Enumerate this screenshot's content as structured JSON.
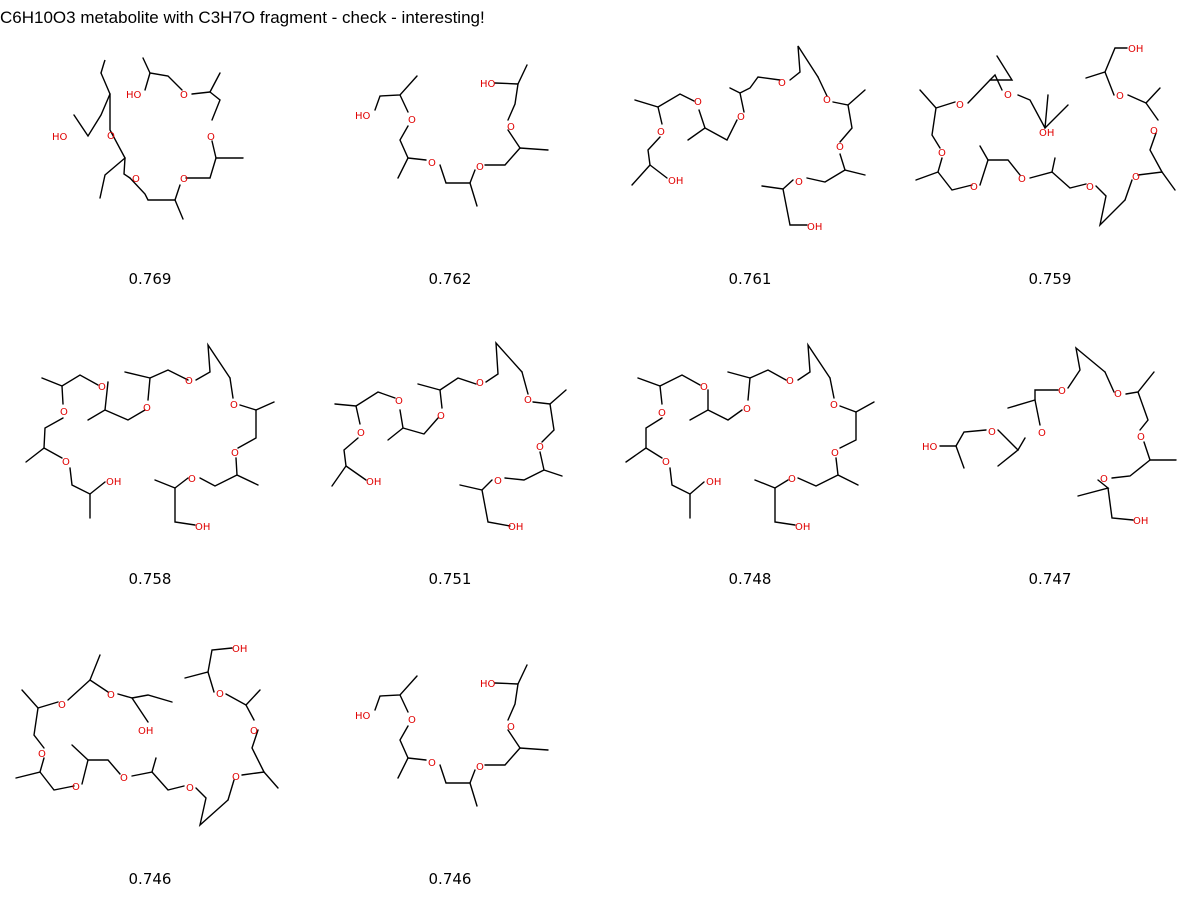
{
  "title": "C6H10O3 metabolite with C3H7O fragment - check - interesting!",
  "colors": {
    "bond": "#000000",
    "oxygen": "#e00000",
    "background": "#ffffff"
  },
  "molecules": [
    {
      "score": "0.769",
      "atom_labels": [
        "HO",
        "HO"
      ]
    },
    {
      "score": "0.762",
      "atom_labels": [
        "HO",
        "HO"
      ]
    },
    {
      "score": "0.761",
      "atom_labels": [
        "OH",
        "OH"
      ]
    },
    {
      "score": "0.759",
      "atom_labels": [
        "OH",
        "OH"
      ]
    },
    {
      "score": "0.758",
      "atom_labels": [
        "OH",
        "OH"
      ]
    },
    {
      "score": "0.751",
      "atom_labels": [
        "OH",
        "OH"
      ]
    },
    {
      "score": "0.748",
      "atom_labels": [
        "OH",
        "OH"
      ]
    },
    {
      "score": "0.747",
      "atom_labels": [
        "HO",
        "OH"
      ]
    },
    {
      "score": "0.746",
      "atom_labels": [
        "OH",
        "OH"
      ]
    },
    {
      "score": "0.746",
      "atom_labels": [
        "HO",
        "HO"
      ]
    }
  ]
}
